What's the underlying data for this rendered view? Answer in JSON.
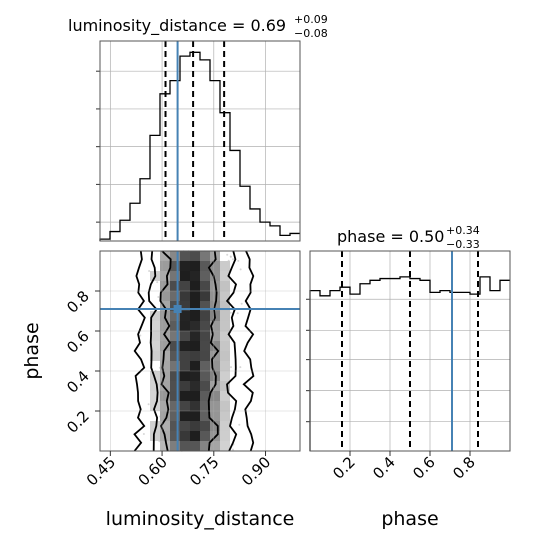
{
  "chart_data": {
    "type": "corner",
    "parameters": [
      "luminosity_distance",
      "phase"
    ],
    "truth": {
      "luminosity_distance": 0.645,
      "phase": 0.71
    },
    "panels": {
      "luminosity_distance_hist": {
        "type": "histogram-step",
        "title": {
          "name": "luminosity_distance",
          "median": "0.69",
          "plus": "+0.09",
          "minus": "−0.08"
        },
        "xlim": [
          0.42,
          1.0
        ],
        "bin_edges": [
          0.42,
          0.449,
          0.478,
          0.507,
          0.536,
          0.565,
          0.594,
          0.623,
          0.652,
          0.681,
          0.71,
          0.739,
          0.768,
          0.797,
          0.826,
          0.855,
          0.884,
          0.913,
          0.942,
          0.971,
          1.0
        ],
        "counts": [
          0.01,
          0.05,
          0.11,
          0.2,
          0.33,
          0.56,
          0.78,
          0.85,
          0.98,
          1.0,
          0.96,
          0.85,
          0.68,
          0.48,
          0.29,
          0.17,
          0.1,
          0.08,
          0.03,
          0.04
        ],
        "quantiles": [
          0.61,
          0.69,
          0.78
        ],
        "truth": 0.645
      },
      "phase_hist": {
        "type": "histogram-step",
        "title": {
          "name": "phase",
          "median": "0.50",
          "plus": "+0.34",
          "minus": "−0.33"
        },
        "xlim": [
          0.0,
          1.0
        ],
        "bin_edges": [
          0.0,
          0.05,
          0.1,
          0.15,
          0.2,
          0.25,
          0.3,
          0.35,
          0.4,
          0.45,
          0.5,
          0.55,
          0.6,
          0.65,
          0.7,
          0.75,
          0.8,
          0.85,
          0.9,
          0.95,
          1.0
        ],
        "counts": [
          0.93,
          0.9,
          0.93,
          0.95,
          0.91,
          0.97,
          0.99,
          1.0,
          1.0,
          1.01,
          1.0,
          0.99,
          0.92,
          0.93,
          0.92,
          0.92,
          0.91,
          1.01,
          0.93,
          0.99
        ],
        "quantiles": [
          0.16,
          0.5,
          0.84
        ],
        "truth": 0.71
      },
      "joint": {
        "type": "density-2d",
        "xlim": [
          0.42,
          1.0
        ],
        "ylim": [
          0.0,
          1.0
        ],
        "contours_x_extent": [
          {
            "level": "outer",
            "x": [
              0.535,
              0.85
            ]
          },
          {
            "level": "middle",
            "x": [
              0.575,
              0.8
            ]
          },
          {
            "level": "inner",
            "x": [
              0.61,
              0.75
            ]
          }
        ]
      }
    },
    "axes": {
      "x_joint": {
        "label": "luminosity_distance",
        "ticks": [
          "0.45",
          "0.60",
          "0.75",
          "0.90"
        ],
        "tick_values": [
          0.45,
          0.6,
          0.75,
          0.9
        ]
      },
      "y_joint": {
        "label": "phase",
        "ticks": [
          "0.2",
          "0.4",
          "0.6",
          "0.8"
        ],
        "tick_values": [
          0.2,
          0.4,
          0.6,
          0.8
        ]
      },
      "x_phase": {
        "label": "phase",
        "ticks": [
          "0.2",
          "0.4",
          "0.6",
          "0.8"
        ],
        "tick_values": [
          0.2,
          0.4,
          0.6,
          0.8
        ]
      }
    },
    "grid": true,
    "colors": {
      "truth": "#4682b4",
      "hist": "#000000",
      "grid": "#b0b0b0",
      "quantile": "#000000"
    }
  }
}
